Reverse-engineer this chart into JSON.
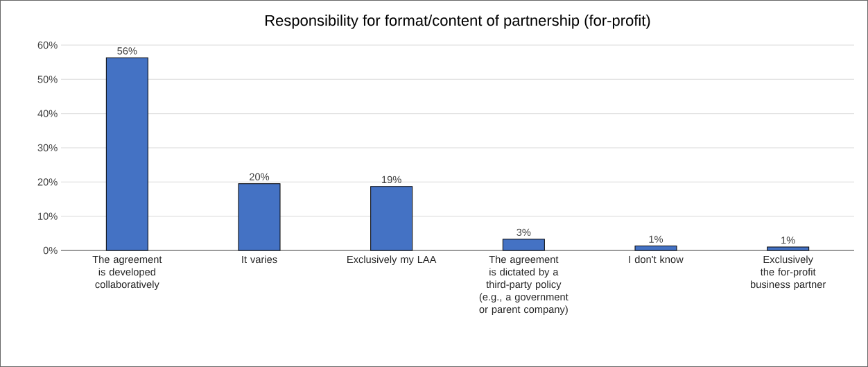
{
  "chart_data": {
    "type": "bar",
    "title": "Responsibility for format/content of partnership (for-profit)",
    "categories": [
      "The agreement is developed collaboratively",
      "It varies",
      "Exclusively my LAA",
      "The agreement is dictated by a third-party policy (e.g., a government or parent company)",
      "I don't know",
      "Exclusively the for-profit business partner"
    ],
    "values": [
      56.3,
      19.5,
      18.7,
      3.3,
      1.3,
      1.0
    ],
    "value_labels": [
      "56%",
      "20%",
      "19%",
      "3%",
      "1%",
      "1%"
    ],
    "color": "#4472c4",
    "ylim": [
      0,
      60
    ],
    "yticks": [
      {
        "value": 0,
        "label": "0%"
      },
      {
        "value": 10,
        "label": "10%"
      },
      {
        "value": 20,
        "label": "20%"
      },
      {
        "value": 30,
        "label": "30%"
      },
      {
        "value": 40,
        "label": "40%"
      },
      {
        "value": 50,
        "label": "50%"
      },
      {
        "value": 60,
        "label": "60%"
      }
    ],
    "grid": "y"
  }
}
